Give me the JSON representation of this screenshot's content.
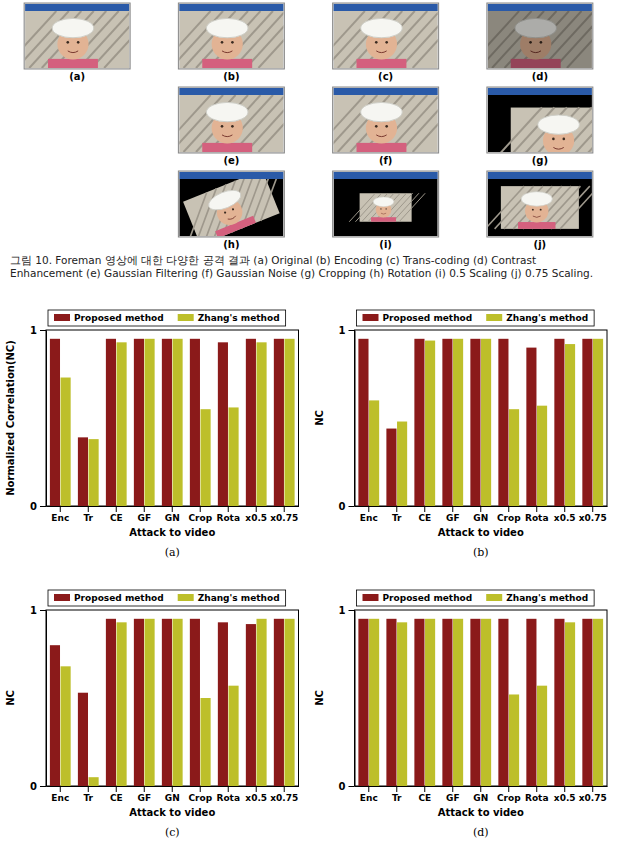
{
  "figure": {
    "panel_labels": [
      "(a)",
      "(b)",
      "(c)",
      "(d)",
      "(e)",
      "(f)",
      "(g)",
      "(h)",
      "(i)",
      "(j)"
    ],
    "caption": "그림 10. Foreman 영상에 대한 다양한 공격 결과 (a) Original (b) Encoding (c) Trans-coding (d) Contrast Enhancement (e) Gaussian Filtering (f) Gaussian Noise (g) Cropping (h) Rotation (i) 0.5 Scaling (j) 0.75 Scaling."
  },
  "chart_data": [
    {
      "type": "bar",
      "panel_label": "(a)",
      "x_label": "Attack to video",
      "y_label": "Normalized Correlation(NC)",
      "categories": [
        "Enc",
        "Tr",
        "CE",
        "GF",
        "GN",
        "Crop",
        "Rota",
        "x0.5",
        "x0.75"
      ],
      "series": [
        {
          "name": "Proposed method",
          "color": "#8b1a1a",
          "values": [
            0.95,
            0.39,
            0.95,
            0.95,
            0.95,
            0.95,
            0.93,
            0.95,
            0.95
          ]
        },
        {
          "name": "Zhang's method",
          "color": "#bdbf2a",
          "values": [
            0.73,
            0.38,
            0.93,
            0.95,
            0.95,
            0.55,
            0.56,
            0.93,
            0.95
          ]
        }
      ],
      "ylim": [
        0,
        1
      ],
      "yticks": [
        0,
        1
      ],
      "grid": false,
      "legend": "top"
    },
    {
      "type": "bar",
      "panel_label": "(b)",
      "x_label": "Attack to video",
      "y_label": "NC",
      "categories": [
        "Enc",
        "Tr",
        "CE",
        "GF",
        "GN",
        "Crop",
        "Rota",
        "x0.5",
        "x0.75"
      ],
      "series": [
        {
          "name": "Proposed method",
          "color": "#8b1a1a",
          "values": [
            0.95,
            0.44,
            0.95,
            0.95,
            0.95,
            0.95,
            0.9,
            0.95,
            0.95
          ]
        },
        {
          "name": "Zhang's method",
          "color": "#bdbf2a",
          "values": [
            0.6,
            0.48,
            0.94,
            0.95,
            0.95,
            0.55,
            0.57,
            0.92,
            0.95
          ]
        }
      ],
      "ylim": [
        0,
        1
      ],
      "yticks": [
        0,
        1
      ],
      "grid": false,
      "legend": "top"
    },
    {
      "type": "bar",
      "panel_label": "(c)",
      "x_label": "Attack to video",
      "y_label": "NC",
      "categories": [
        "Enc",
        "Tr",
        "CE",
        "GF",
        "GN",
        "Crop",
        "Rota",
        "x0.5",
        "x0.75"
      ],
      "series": [
        {
          "name": "Proposed method",
          "color": "#8b1a1a",
          "values": [
            0.8,
            0.53,
            0.95,
            0.95,
            0.95,
            0.95,
            0.93,
            0.92,
            0.95
          ]
        },
        {
          "name": "Zhang's method",
          "color": "#bdbf2a",
          "values": [
            0.68,
            0.05,
            0.93,
            0.95,
            0.95,
            0.5,
            0.57,
            0.95,
            0.95
          ]
        }
      ],
      "ylim": [
        0,
        1
      ],
      "yticks": [
        0,
        1
      ],
      "grid": false,
      "legend": "top"
    },
    {
      "type": "bar",
      "panel_label": "(d)",
      "x_label": "Attack to video",
      "y_label": "NC",
      "categories": [
        "Enc",
        "Tr",
        "CE",
        "GF",
        "GN",
        "Crop",
        "Rota",
        "x0.5",
        "x0.75"
      ],
      "series": [
        {
          "name": "Proposed method",
          "color": "#8b1a1a",
          "values": [
            0.95,
            0.95,
            0.95,
            0.95,
            0.95,
            0.95,
            0.95,
            0.95,
            0.95
          ]
        },
        {
          "name": "Zhang's method",
          "color": "#bdbf2a",
          "values": [
            0.95,
            0.93,
            0.95,
            0.95,
            0.95,
            0.52,
            0.57,
            0.93,
            0.95
          ]
        }
      ],
      "ylim": [
        0,
        1
      ],
      "yticks": [
        0,
        1
      ],
      "grid": false,
      "legend": "top"
    }
  ]
}
